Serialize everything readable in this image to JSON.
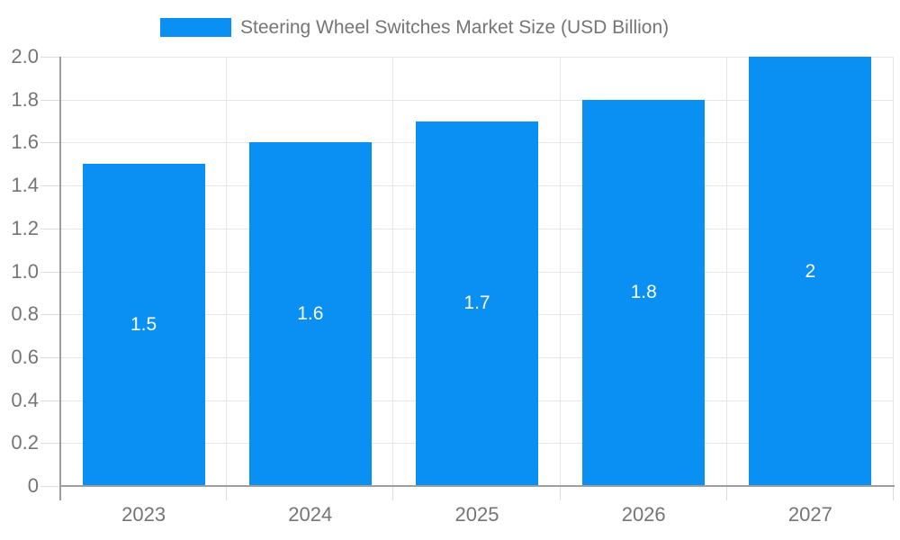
{
  "legend": {
    "label": "Steering Wheel Switches Market Size (USD Billion)"
  },
  "chart_data": {
    "type": "bar",
    "title": "Steering Wheel Switches Market Size (USD Billion)",
    "categories": [
      "2023",
      "2024",
      "2025",
      "2026",
      "2027"
    ],
    "values": [
      1.5,
      1.6,
      1.7,
      1.8,
      2.0
    ],
    "bar_labels": [
      "1.5",
      "1.6",
      "1.7",
      "1.8",
      "2"
    ],
    "xlabel": "",
    "ylabel": "",
    "ylim": [
      0,
      2.0
    ],
    "y_ticks": [
      "2.0",
      "1.8",
      "1.6",
      "1.4",
      "1.2",
      "1.0",
      "0.8",
      "0.6",
      "0.4",
      "0.2",
      "0"
    ],
    "grid": "on",
    "legend_position": "top",
    "colors": {
      "bar": "#0a8ff2",
      "bar_label_text": "#ffffff",
      "axis_text": "#757575",
      "legend_text": "#757575",
      "gridline": "#e6e6e6",
      "tick_stub": "#dcdcdc",
      "axis_line": "#9e9e9e",
      "background": "#ffffff"
    }
  }
}
